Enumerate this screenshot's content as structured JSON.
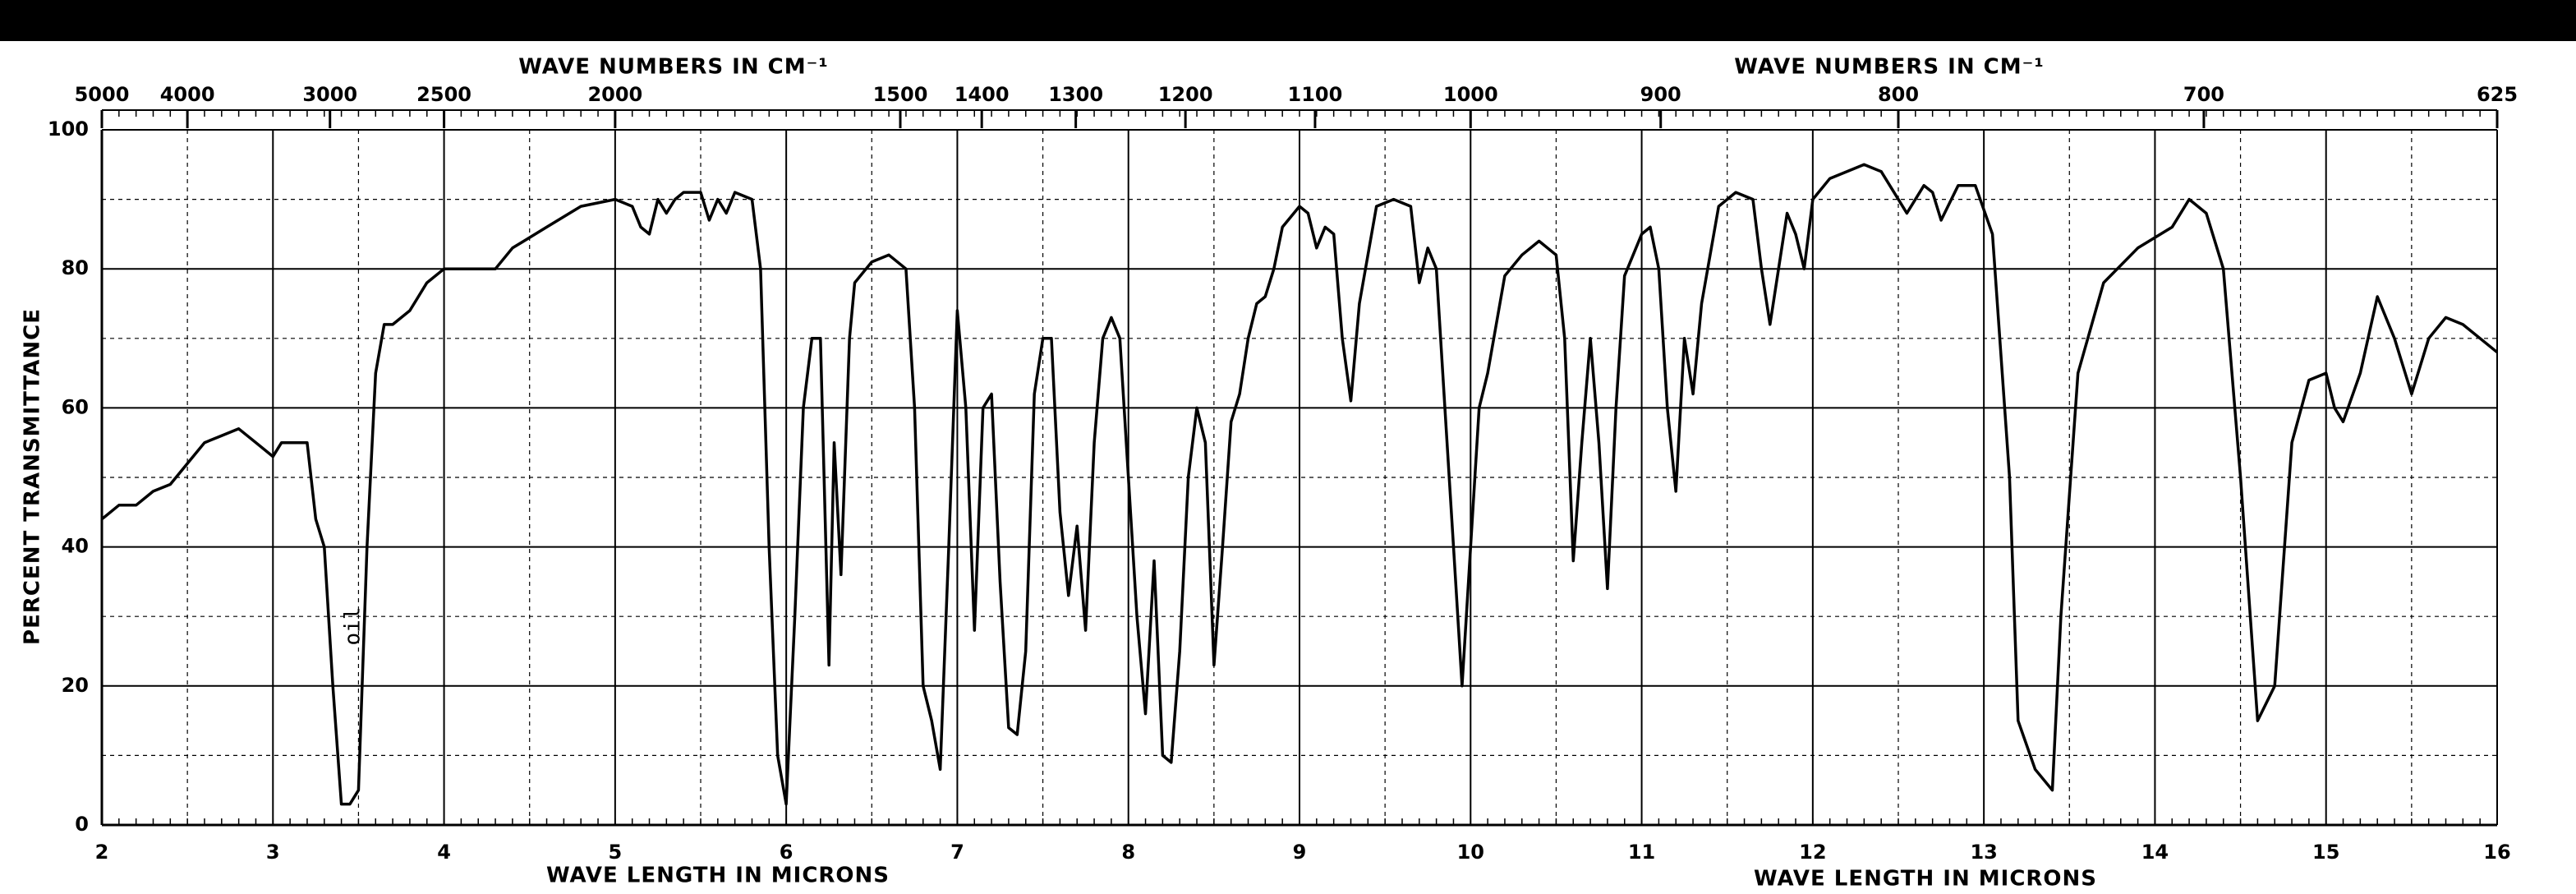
{
  "chart_data": {
    "type": "line",
    "y_label": "PERCENT TRANSMITTANCE",
    "x_labels": [
      "WAVE LENGTH IN MICRONS",
      "WAVE LENGTH IN MICRONS"
    ],
    "x2_labels": [
      "WAVE NUMBERS IN CM⁻¹",
      "WAVE NUMBERS IN CM⁻¹"
    ],
    "annotation": "oil",
    "color": "#000000",
    "grid": true,
    "xlim": [
      2,
      16
    ],
    "xticks": [
      2,
      3,
      4,
      5,
      6,
      7,
      8,
      9,
      10,
      11,
      12,
      13,
      14,
      15,
      16
    ],
    "x2ticks": [
      5000,
      4000,
      3000,
      2500,
      2000,
      1500,
      1400,
      1300,
      1200,
      1100,
      1000,
      900,
      800,
      700,
      625
    ],
    "ylim": [
      0,
      100
    ],
    "yticks": [
      0,
      20,
      40,
      60,
      80,
      100
    ],
    "x": [
      2.0,
      2.1,
      2.2,
      2.3,
      2.4,
      2.5,
      2.6,
      2.7,
      2.8,
      2.9,
      3.0,
      3.05,
      3.1,
      3.2,
      3.25,
      3.3,
      3.35,
      3.4,
      3.45,
      3.5,
      3.55,
      3.6,
      3.65,
      3.7,
      3.8,
      3.9,
      4.0,
      4.2,
      4.3,
      4.4,
      4.6,
      4.8,
      5.0,
      5.1,
      5.15,
      5.2,
      5.25,
      5.3,
      5.35,
      5.4,
      5.5,
      5.55,
      5.6,
      5.65,
      5.7,
      5.8,
      5.85,
      5.9,
      5.95,
      6.0,
      6.05,
      6.1,
      6.15,
      6.2,
      6.25,
      6.28,
      6.32,
      6.37,
      6.4,
      6.5,
      6.6,
      6.7,
      6.75,
      6.8,
      6.85,
      6.9,
      6.95,
      7.0,
      7.05,
      7.1,
      7.15,
      7.2,
      7.25,
      7.3,
      7.35,
      7.4,
      7.45,
      7.5,
      7.55,
      7.6,
      7.65,
      7.7,
      7.75,
      7.8,
      7.85,
      7.9,
      7.95,
      8.0,
      8.05,
      8.1,
      8.15,
      8.2,
      8.25,
      8.3,
      8.35,
      8.4,
      8.45,
      8.5,
      8.55,
      8.6,
      8.65,
      8.7,
      8.75,
      8.8,
      8.85,
      8.9,
      9.0,
      9.05,
      9.1,
      9.15,
      9.2,
      9.25,
      9.3,
      9.35,
      9.45,
      9.55,
      9.65,
      9.7,
      9.75,
      9.8,
      9.85,
      9.9,
      9.95,
      10.0,
      10.05,
      10.1,
      10.2,
      10.3,
      10.4,
      10.5,
      10.55,
      10.6,
      10.65,
      10.7,
      10.75,
      10.8,
      10.85,
      10.9,
      11.0,
      11.05,
      11.1,
      11.15,
      11.2,
      11.25,
      11.3,
      11.35,
      11.45,
      11.55,
      11.65,
      11.7,
      11.75,
      11.8,
      11.85,
      11.9,
      11.95,
      12.0,
      12.1,
      12.3,
      12.4,
      12.5,
      12.55,
      12.65,
      12.7,
      12.75,
      12.85,
      12.95,
      13.05,
      13.15,
      13.2,
      13.3,
      13.4,
      13.45,
      13.55,
      13.7,
      13.9,
      14.1,
      14.2,
      14.3,
      14.4,
      14.5,
      14.6,
      14.7,
      14.8,
      14.9,
      15.0,
      15.05,
      15.1,
      15.2,
      15.3,
      15.4,
      15.5,
      15.6,
      15.7,
      15.8,
      15.9,
      16.0
    ],
    "values": [
      44,
      46,
      46,
      48,
      49,
      52,
      55,
      56,
      57,
      55,
      53,
      55,
      55,
      55,
      44,
      40,
      20,
      3,
      3,
      5,
      40,
      65,
      72,
      72,
      74,
      78,
      80,
      80,
      80,
      83,
      86,
      89,
      90,
      89,
      86,
      85,
      90,
      88,
      90,
      91,
      91,
      87,
      90,
      88,
      91,
      90,
      80,
      40,
      10,
      3,
      30,
      60,
      70,
      70,
      23,
      55,
      36,
      70,
      78,
      81,
      82,
      80,
      60,
      20,
      15,
      8,
      40,
      74,
      60,
      28,
      60,
      62,
      35,
      14,
      13,
      25,
      62,
      70,
      70,
      45,
      33,
      43,
      28,
      55,
      70,
      73,
      70,
      50,
      30,
      16,
      38,
      10,
      9,
      25,
      50,
      60,
      55,
      23,
      40,
      58,
      62,
      70,
      75,
      76,
      80,
      86,
      89,
      88,
      83,
      86,
      85,
      70,
      61,
      75,
      89,
      90,
      89,
      78,
      83,
      80,
      60,
      40,
      20,
      40,
      60,
      65,
      79,
      82,
      84,
      82,
      70,
      38,
      55,
      70,
      55,
      34,
      60,
      79,
      85,
      86,
      80,
      60,
      48,
      70,
      62,
      75,
      89,
      91,
      90,
      80,
      72,
      80,
      88,
      85,
      80,
      90,
      93,
      95,
      94,
      90,
      88,
      92,
      91,
      87,
      92,
      92,
      85,
      50,
      15,
      8,
      5,
      30,
      65,
      78,
      83,
      86,
      90,
      88,
      80,
      50,
      15,
      20,
      55,
      64,
      65,
      60,
      58,
      65,
      76,
      70,
      62,
      70,
      73,
      72,
      70,
      68
    ]
  }
}
